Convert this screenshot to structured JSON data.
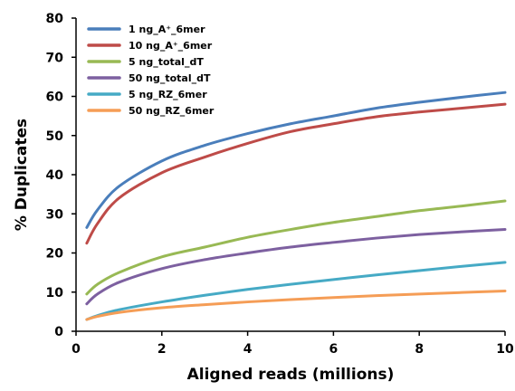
{
  "chart_data": {
    "type": "line",
    "xlabel": "Aligned reads (millions)",
    "ylabel": "% Duplicates",
    "xlim": [
      0,
      10
    ],
    "ylim": [
      0,
      80
    ],
    "xticks": [
      "0",
      "2",
      "4",
      "6",
      "8",
      "10"
    ],
    "yticks": [
      "0",
      "10",
      "20",
      "30",
      "40",
      "50",
      "60",
      "70",
      "80"
    ],
    "grid": false,
    "legend_position": "top-left",
    "series": [
      {
        "name": "1 ng_A⁺_6mer",
        "color": "#4a7ebb",
        "x": [
          0.25,
          0.5,
          1,
          2,
          3,
          4,
          5,
          6,
          7,
          8,
          9,
          10
        ],
        "y": [
          26.5,
          31,
          37,
          43.5,
          47.5,
          50.5,
          53,
          55,
          57,
          58.5,
          59.8,
          61
        ]
      },
      {
        "name": "10 ng_A⁺_6mer",
        "color": "#be4b48",
        "x": [
          0.25,
          0.5,
          1,
          2,
          3,
          4,
          5,
          6,
          7,
          8,
          9,
          10
        ],
        "y": [
          22.5,
          27.5,
          34,
          40.5,
          44.5,
          48,
          51,
          53,
          54.8,
          56,
          57,
          58
        ]
      },
      {
        "name": "5 ng_total_dT",
        "color": "#98b954",
        "x": [
          0.25,
          0.5,
          1,
          2,
          3,
          4,
          5,
          6,
          7,
          8,
          9,
          10
        ],
        "y": [
          9.5,
          12,
          15,
          19,
          21.5,
          24,
          26,
          27.8,
          29.3,
          30.8,
          32,
          33.3
        ]
      },
      {
        "name": "50 ng_total_dT",
        "color": "#7d60a0",
        "x": [
          0.25,
          0.5,
          1,
          2,
          3,
          4,
          5,
          6,
          7,
          8,
          9,
          10
        ],
        "y": [
          7,
          9.5,
          12.5,
          16,
          18.3,
          20,
          21.5,
          22.7,
          23.8,
          24.7,
          25.4,
          26
        ]
      },
      {
        "name": "5 ng_RZ_6mer",
        "color": "#46aac5",
        "x": [
          0.25,
          0.5,
          1,
          2,
          3,
          4,
          5,
          6,
          7,
          8,
          9,
          10
        ],
        "y": [
          3,
          4,
          5.5,
          7.5,
          9.2,
          10.7,
          12,
          13.2,
          14.4,
          15.5,
          16.6,
          17.6
        ]
      },
      {
        "name": "50 ng_RZ_6mer",
        "color": "#f59d56",
        "x": [
          0.25,
          0.5,
          1,
          2,
          3,
          4,
          5,
          6,
          7,
          8,
          9,
          10
        ],
        "y": [
          3,
          3.8,
          4.8,
          6,
          6.8,
          7.5,
          8.1,
          8.6,
          9.1,
          9.5,
          9.9,
          10.3
        ]
      }
    ]
  }
}
